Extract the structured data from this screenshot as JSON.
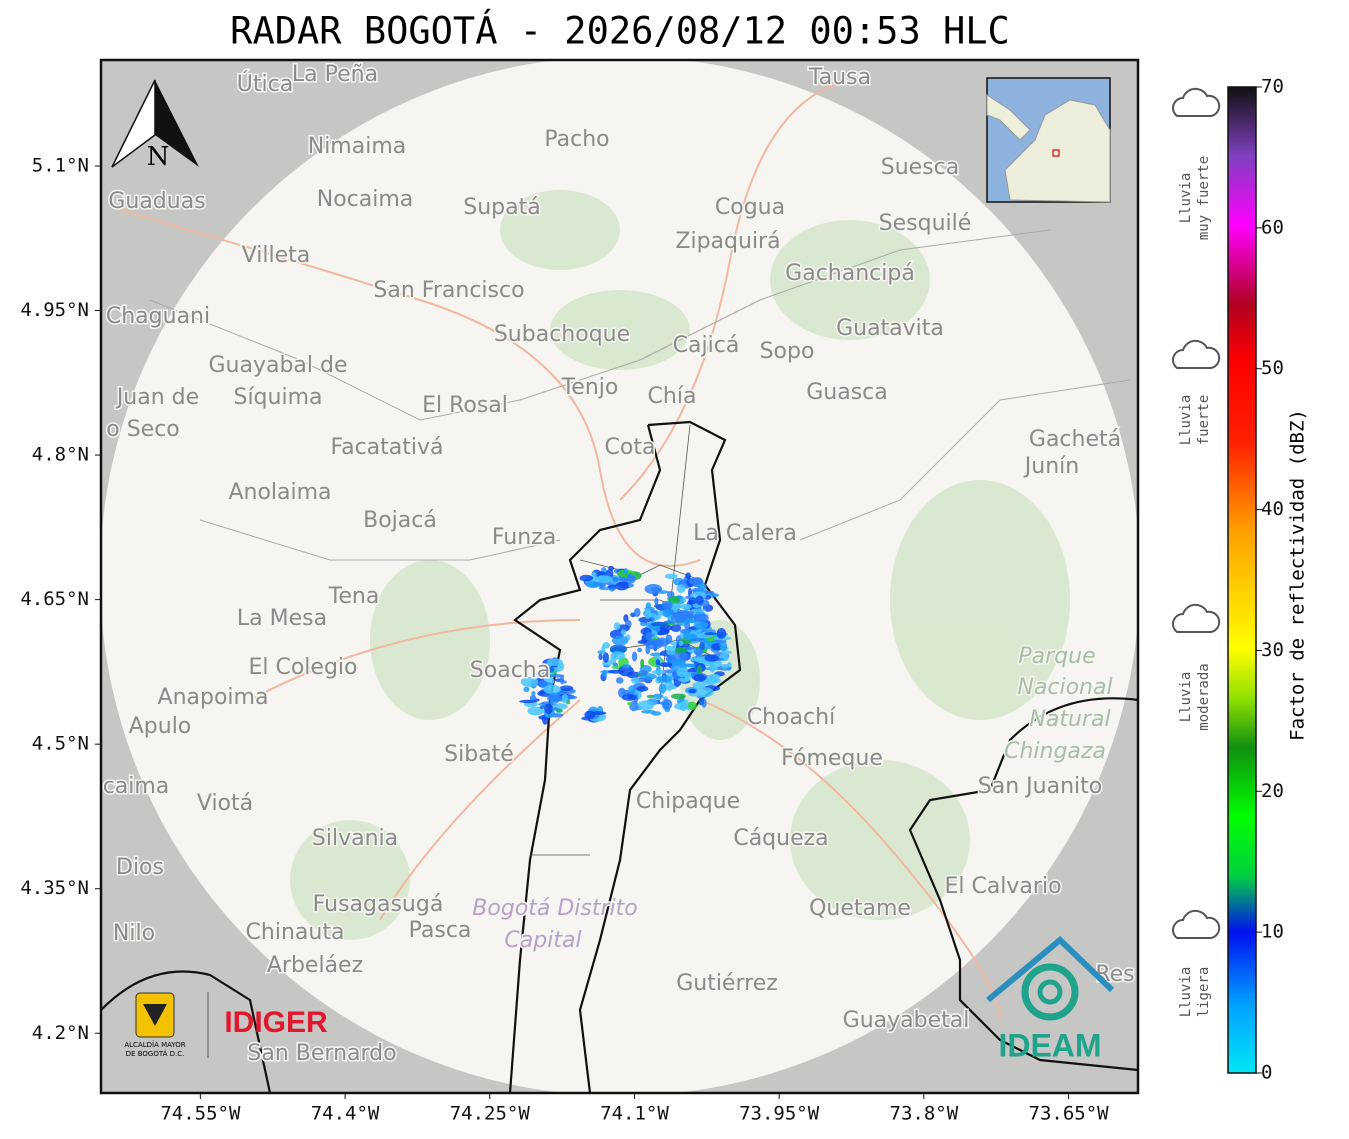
{
  "title": "RADAR BOGOTÁ - 2026/08/12 00:53 HLC",
  "map": {
    "xlim": [
      -74.653,
      -73.578
    ],
    "ylim": [
      4.138,
      5.21
    ],
    "xticks": [
      {
        "value": -74.55,
        "label": "74.55°W"
      },
      {
        "value": -74.4,
        "label": "74.4°W"
      },
      {
        "value": -74.25,
        "label": "74.25°W"
      },
      {
        "value": -74.1,
        "label": "74.1°W"
      },
      {
        "value": -73.95,
        "label": "73.95°W"
      },
      {
        "value": -73.8,
        "label": "73.8°W"
      },
      {
        "value": -73.65,
        "label": "73.65°W"
      }
    ],
    "yticks": [
      {
        "value": 5.1,
        "label": "5.1°N"
      },
      {
        "value": 4.95,
        "label": "4.95°N"
      },
      {
        "value": 4.8,
        "label": "4.8°N"
      },
      {
        "value": 4.65,
        "label": "4.65°N"
      },
      {
        "value": 4.5,
        "label": "4.5°N"
      },
      {
        "value": 4.35,
        "label": "4.35°N"
      },
      {
        "value": 4.2,
        "label": "4.2°N"
      }
    ],
    "grid": true,
    "north": "N",
    "places": [
      "Útica",
      "La Peña",
      "Tausa",
      "Pacho",
      "Nimaima",
      "Guaduas",
      "Nocaima",
      "Supatá",
      "Cogua",
      "Suesca",
      "Sesquilé",
      "Zipaquirá",
      "Villeta",
      "Gachancipá",
      "San Francisco",
      "Chaguani",
      "Guatavita",
      "Subachoque",
      "Cajicá",
      "Sopo",
      "Guayabal de",
      "Síquima",
      "Juan de",
      "o Seco",
      "Tenjo",
      "Chía",
      "Guasca",
      "El Rosal",
      "Facatativá",
      "Cota",
      "Gachetá",
      "Junín",
      "Anolaima",
      "Bojacá",
      "Funza",
      "La Calera",
      "Tena",
      "La Mesa",
      "El Colegio",
      "Soacha",
      "Parque",
      "Nacional",
      "Natural",
      "Chingaza",
      "Anapoima",
      "Apulo",
      "Choachí",
      "Sibaté",
      "Fómeque",
      "San Juanito",
      "caima",
      "Viotá",
      "Chipaque",
      "Silvania",
      "Cáqueza",
      "Dios",
      "El Calvario",
      "Fusagasugá",
      "Bogotá Distrito",
      "Capital",
      "Quetame",
      "Nilo",
      "Chinauta",
      "Pasca",
      "Arbeláez",
      "Gutiérrez",
      "Res",
      "Guayabetal",
      "San Bernardo"
    ]
  },
  "colorbar": {
    "label": "Factor de reflectividad (dBZ)",
    "lim": [
      0,
      70
    ],
    "ticks": [
      0,
      10,
      20,
      30,
      40,
      50,
      60,
      70
    ]
  },
  "rain_classes": [
    [
      "Lluvia",
      "muy fuerte"
    ],
    [
      "Lluvia",
      "fuerte"
    ],
    [
      "Lluvia",
      "moderada"
    ],
    [
      "Lluvia",
      "ligera"
    ]
  ],
  "logos": {
    "alcaldia": [
      "ALCALDÍA MAYOR",
      "DE BOGOTÁ D.C."
    ],
    "idiger": "IDIGER",
    "ideam": "IDEAM"
  }
}
